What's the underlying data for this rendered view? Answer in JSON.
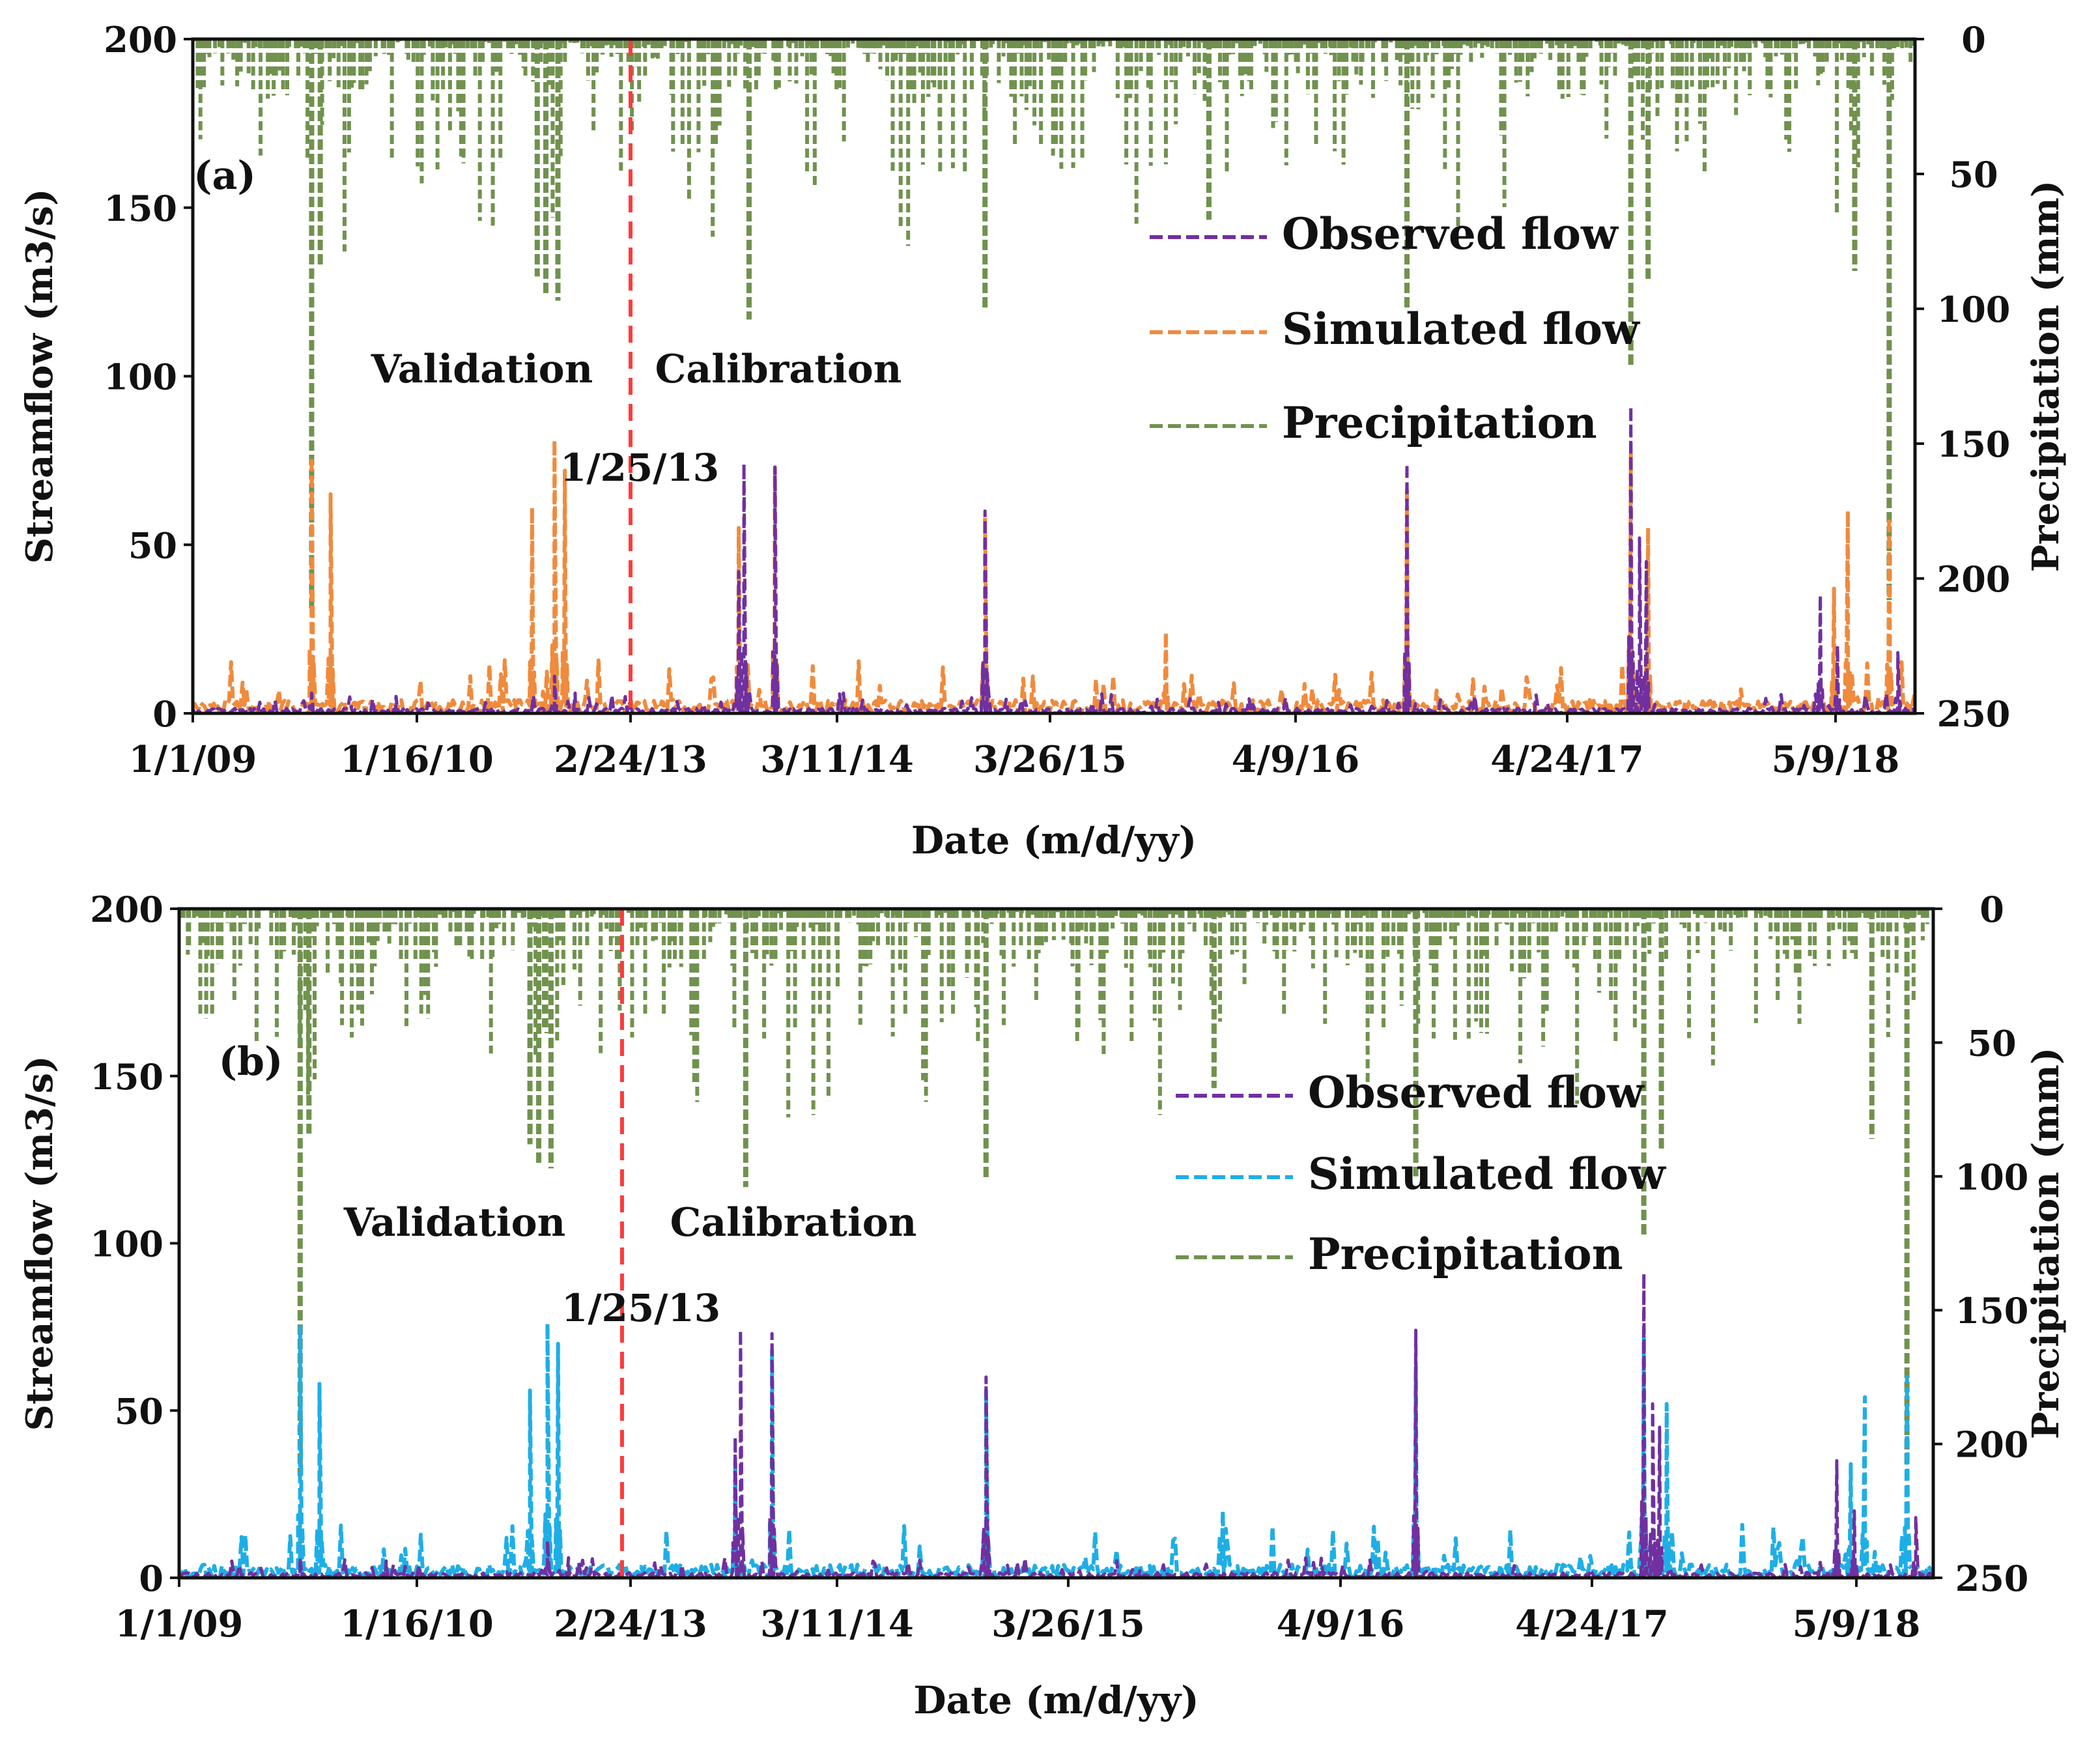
{
  "chart_data": [
    {
      "type": "line",
      "panel_label": "(a)",
      "xlabel": "Date (m/d/yy)",
      "ylabel_left": "Streamflow (m3/s)",
      "ylabel_right": "Precipitation (mm)",
      "ylim_left": [
        0,
        200
      ],
      "ylim_right_inverted": [
        0,
        250
      ],
      "yticks_left": [
        "0",
        "50",
        "100",
        "150",
        "200"
      ],
      "yticks_right": [
        "0",
        "50",
        "100",
        "150",
        "200",
        "250"
      ],
      "xticks": [
        "1/1/09",
        "1/16/10",
        "2/24/13",
        "3/11/14",
        "3/26/15",
        "4/9/16",
        "4/24/17",
        "5/9/18"
      ],
      "annotations": {
        "validation": "Validation",
        "calibration": "Calibration",
        "split_date": "1/25/13"
      },
      "legend": [
        {
          "name": "Observed flow",
          "color": "#7030A0"
        },
        {
          "name": "Simulated flow",
          "color": "#F08A3C"
        },
        {
          "name": "Precipitation",
          "color": "#70924E"
        }
      ],
      "series": [
        {
          "name": "Observed flow",
          "peaks": [
            [
              0.069,
              6
            ],
            [
              0.118,
              5
            ],
            [
              0.21,
              11
            ],
            [
              0.222,
              6
            ],
            [
              0.317,
              42
            ],
            [
              0.32,
              74
            ],
            [
              0.338,
              73
            ],
            [
              0.46,
              60
            ],
            [
              0.705,
              74
            ],
            [
              0.835,
              91
            ],
            [
              0.84,
              52
            ],
            [
              0.844,
              45
            ],
            [
              0.945,
              35
            ],
            [
              0.955,
              20
            ],
            [
              0.99,
              18
            ]
          ]
        },
        {
          "name": "Simulated flow",
          "peaks": [
            [
              0.069,
              76
            ],
            [
              0.08,
              65
            ],
            [
              0.197,
              61
            ],
            [
              0.21,
              81
            ],
            [
              0.216,
              72
            ],
            [
              0.317,
              55
            ],
            [
              0.338,
              73
            ],
            [
              0.46,
              58
            ],
            [
              0.565,
              24
            ],
            [
              0.705,
              67
            ],
            [
              0.835,
              77
            ],
            [
              0.845,
              55
            ],
            [
              0.953,
              37
            ],
            [
              0.961,
              60
            ],
            [
              0.985,
              58
            ]
          ]
        },
        {
          "name": "Precipitation",
          "peaks": [
            [
              0.069,
              212
            ],
            [
              0.074,
              84
            ],
            [
              0.2,
              88
            ],
            [
              0.205,
              95
            ],
            [
              0.212,
              97
            ],
            [
              0.323,
              104
            ],
            [
              0.46,
              101
            ],
            [
              0.59,
              67
            ],
            [
              0.705,
              100
            ],
            [
              0.835,
              122
            ],
            [
              0.845,
              90
            ],
            [
              0.965,
              86
            ],
            [
              0.985,
              208
            ]
          ]
        }
      ]
    },
    {
      "type": "line",
      "panel_label": "(b)",
      "xlabel": "Date (m/d/yy)",
      "ylabel_left": "Streamflow (m3/s)",
      "ylabel_right": "Precipitation (mm)",
      "ylim_left": [
        0,
        200
      ],
      "ylim_right_inverted": [
        0,
        250
      ],
      "yticks_left": [
        "0",
        "50",
        "100",
        "150",
        "200"
      ],
      "yticks_right": [
        "0",
        "50",
        "100",
        "150",
        "200",
        "250"
      ],
      "xticks": [
        "1/1/09",
        "1/16/10",
        "2/24/13",
        "3/11/14",
        "3/26/15",
        "4/9/16",
        "4/24/17",
        "5/9/18"
      ],
      "annotations": {
        "validation": "Validation",
        "calibration": "Calibration",
        "split_date": "1/25/13"
      },
      "legend": [
        {
          "name": "Observed flow",
          "color": "#7030A0"
        },
        {
          "name": "Simulated flow",
          "color": "#1EAEE6"
        },
        {
          "name": "Precipitation",
          "color": "#70924E"
        }
      ],
      "series": [
        {
          "name": "Observed flow",
          "peaks": [
            [
              0.069,
              6
            ],
            [
              0.118,
              5
            ],
            [
              0.21,
              11
            ],
            [
              0.222,
              6
            ],
            [
              0.317,
              42
            ],
            [
              0.32,
              74
            ],
            [
              0.338,
              73
            ],
            [
              0.46,
              60
            ],
            [
              0.705,
              74
            ],
            [
              0.835,
              91
            ],
            [
              0.84,
              52
            ],
            [
              0.844,
              45
            ],
            [
              0.945,
              35
            ],
            [
              0.955,
              20
            ],
            [
              0.99,
              18
            ]
          ]
        },
        {
          "name": "Simulated flow",
          "peaks": [
            [
              0.069,
              75
            ],
            [
              0.08,
              58
            ],
            [
              0.2,
              56
            ],
            [
              0.21,
              76
            ],
            [
              0.216,
              70
            ],
            [
              0.317,
              35
            ],
            [
              0.338,
              68
            ],
            [
              0.46,
              56
            ],
            [
              0.595,
              20
            ],
            [
              0.705,
              63
            ],
            [
              0.835,
              72
            ],
            [
              0.848,
              52
            ],
            [
              0.953,
              34
            ],
            [
              0.961,
              54
            ],
            [
              0.985,
              60
            ]
          ]
        },
        {
          "name": "Precipitation",
          "peaks": [
            [
              0.069,
              212
            ],
            [
              0.074,
              84
            ],
            [
              0.2,
              88
            ],
            [
              0.205,
              95
            ],
            [
              0.212,
              97
            ],
            [
              0.323,
              104
            ],
            [
              0.46,
              101
            ],
            [
              0.59,
              67
            ],
            [
              0.705,
              100
            ],
            [
              0.835,
              122
            ],
            [
              0.845,
              90
            ],
            [
              0.965,
              86
            ],
            [
              0.985,
              208
            ]
          ]
        }
      ]
    }
  ]
}
